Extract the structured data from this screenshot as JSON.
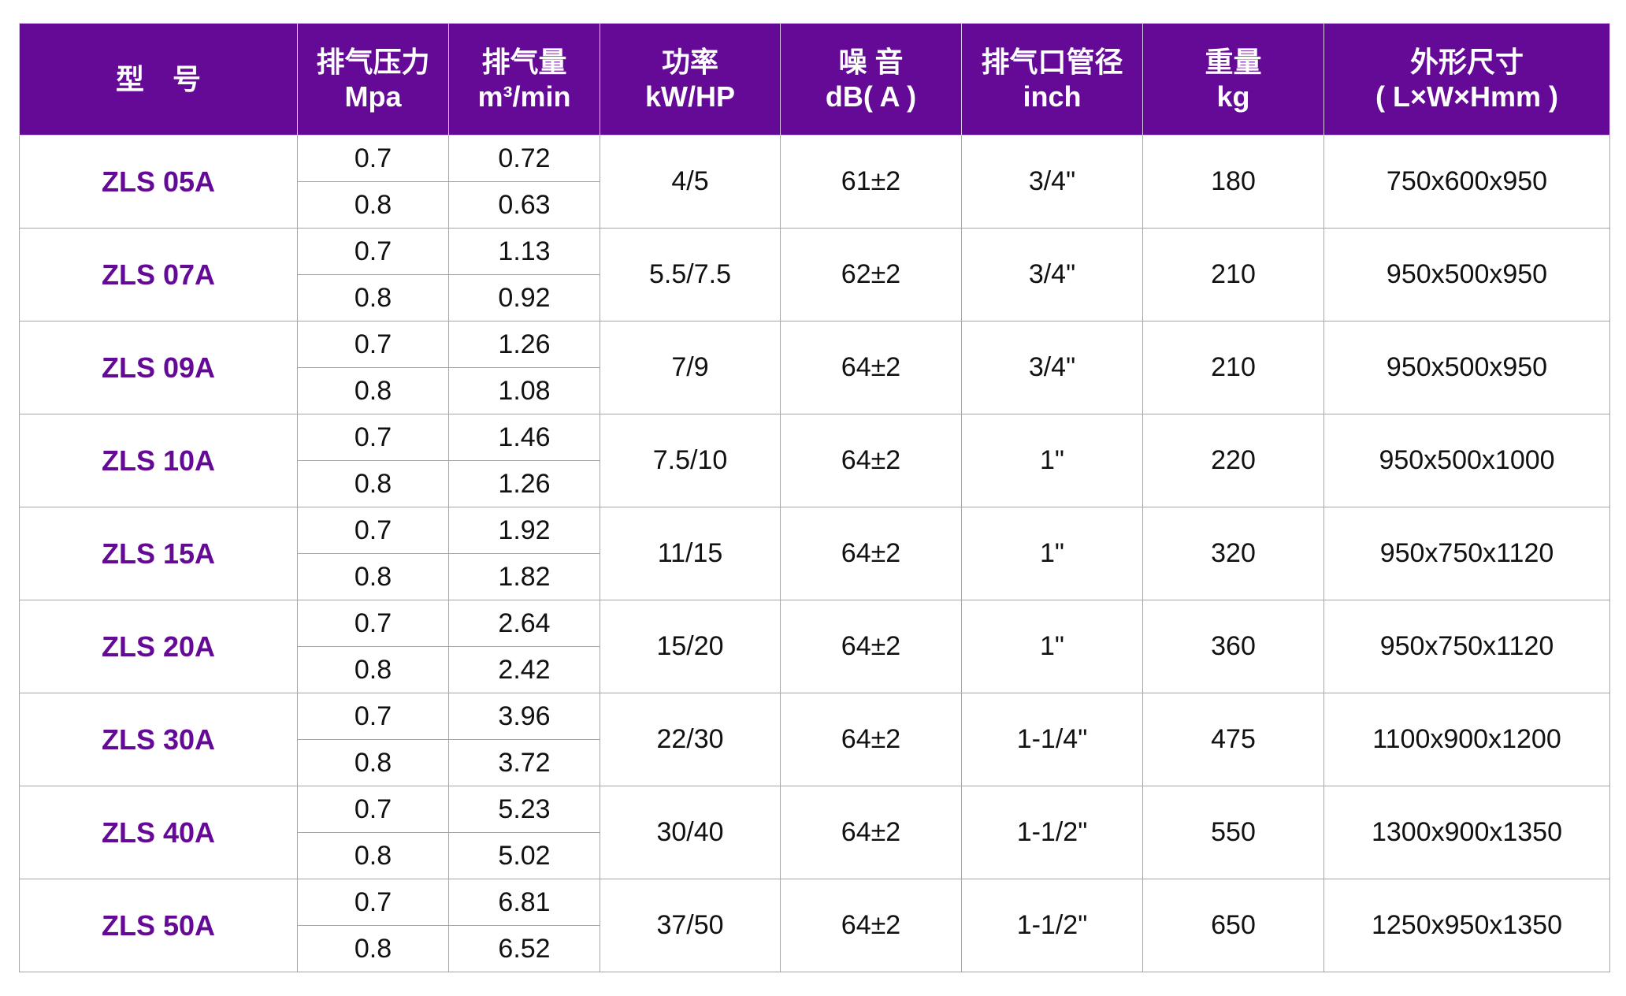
{
  "colors": {
    "header_bg": "#650a96",
    "model_text": "#650a96"
  },
  "headers": [
    {
      "line1": "型　号",
      "line2": ""
    },
    {
      "line1": "排气压力",
      "line2": "Mpa"
    },
    {
      "line1": "排气量",
      "line2": "m³/min"
    },
    {
      "line1": "功率",
      "line2": "kW/HP"
    },
    {
      "line1": "噪 音",
      "line2": "dB( A )"
    },
    {
      "line1": "排气口管径",
      "line2": "inch"
    },
    {
      "line1": "重量",
      "line2": "kg"
    },
    {
      "line1": "外形尺寸",
      "line2": "( L×W×Hmm )"
    }
  ],
  "rows": [
    {
      "model": "ZLS 05A",
      "pressures": [
        "0.7",
        "0.8"
      ],
      "flows": [
        "0.72",
        "0.63"
      ],
      "power": "4/5",
      "noise": "61±2",
      "outlet": "3/4\"",
      "weight": "180",
      "size": "750x600x950"
    },
    {
      "model": "ZLS 07A",
      "pressures": [
        "0.7",
        "0.8"
      ],
      "flows": [
        "1.13",
        "0.92"
      ],
      "power": "5.5/7.5",
      "noise": "62±2",
      "outlet": "3/4\"",
      "weight": "210",
      "size": "950x500x950"
    },
    {
      "model": "ZLS 09A",
      "pressures": [
        "0.7",
        "0.8"
      ],
      "flows": [
        "1.26",
        "1.08"
      ],
      "power": "7/9",
      "noise": "64±2",
      "outlet": "3/4\"",
      "weight": "210",
      "size": "950x500x950"
    },
    {
      "model": "ZLS 10A",
      "pressures": [
        "0.7",
        "0.8"
      ],
      "flows": [
        "1.46",
        "1.26"
      ],
      "power": "7.5/10",
      "noise": "64±2",
      "outlet": "1\"",
      "weight": "220",
      "size": "950x500x1000"
    },
    {
      "model": "ZLS 15A",
      "pressures": [
        "0.7",
        "0.8"
      ],
      "flows": [
        "1.92",
        "1.82"
      ],
      "power": "11/15",
      "noise": "64±2",
      "outlet": "1\"",
      "weight": "320",
      "size": "950x750x1120"
    },
    {
      "model": "ZLS 20A",
      "pressures": [
        "0.7",
        "0.8"
      ],
      "flows": [
        "2.64",
        "2.42"
      ],
      "power": "15/20",
      "noise": "64±2",
      "outlet": "1\"",
      "weight": "360",
      "size": "950x750x1120"
    },
    {
      "model": "ZLS 30A",
      "pressures": [
        "0.7",
        "0.8"
      ],
      "flows": [
        "3.96",
        "3.72"
      ],
      "power": "22/30",
      "noise": "64±2",
      "outlet": "1-1/4\"",
      "weight": "475",
      "size": "1100x900x1200"
    },
    {
      "model": "ZLS 40A",
      "pressures": [
        "0.7",
        "0.8"
      ],
      "flows": [
        "5.23",
        "5.02"
      ],
      "power": "30/40",
      "noise": "64±2",
      "outlet": "1-1/2\"",
      "weight": "550",
      "size": "1300x900x1350"
    },
    {
      "model": "ZLS 50A",
      "pressures": [
        "0.7",
        "0.8"
      ],
      "flows": [
        "6.81",
        "6.52"
      ],
      "power": "37/50",
      "noise": "64±2",
      "outlet": "1-1/2\"",
      "weight": "650",
      "size": "1250x950x1350"
    }
  ]
}
